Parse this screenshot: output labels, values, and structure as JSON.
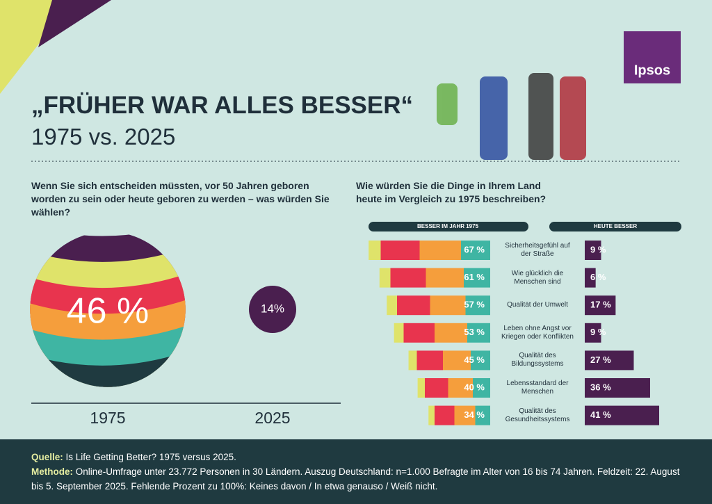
{
  "title": "„FRÜHER WAR ALLES BESSER“",
  "subtitle": "1975 vs. 2025",
  "logo": "Ipsos",
  "chart_data": [
    {
      "type": "bubble",
      "title": "Wenn Sie sich entscheiden müssten, vor 50 Jahren geboren worden zu sein oder heute geboren zu werden – was würden Sie wählen?",
      "categories": [
        "1975",
        "2025"
      ],
      "values": [
        46,
        14
      ],
      "value_labels": [
        "46 %",
        "14%"
      ],
      "colors": [
        "#e8344e",
        "#4a1f4f"
      ]
    },
    {
      "type": "diverging-bar",
      "title": "Wie würden Sie die Dinge in Ihrem Land heute im Vergleich zu 1975 beschreiben?",
      "categories": [
        "Sicherheitsgefühl auf der Straße",
        "Wie glücklich die Menschen sind",
        "Qualität der Umwelt",
        "Leben ohne Angst vor Kriegen oder Konflikten",
        "Qualität des Bildungssystems",
        "Lebensstandard der Menschen",
        "Qualität des Gesundheitssystems"
      ],
      "series": [
        {
          "name": "BESSER IM JAHR 1975",
          "color": "#e8344e",
          "values": [
            67,
            61,
            57,
            53,
            45,
            40,
            34
          ],
          "value_labels": [
            "67 %",
            "61 %",
            "57 %",
            "53 %",
            "45 %",
            "40 %",
            "34 %"
          ]
        },
        {
          "name": "HEUTE BESSER",
          "color": "#4a1f4f",
          "values": [
            9,
            6,
            17,
            9,
            27,
            36,
            41
          ],
          "value_labels": [
            "9 %",
            "6 %",
            "17 %",
            "9 %",
            "27 %",
            "36 %",
            "41 %"
          ]
        }
      ]
    }
  ],
  "footer": {
    "source_label": "Quelle:",
    "source_text": "Is Life Getting Better? 1975 versus 2025.",
    "method_label": "Methode:",
    "method_text": "Online-Umfrage unter 23.772 Personen in 30 Ländern. Auszug Deutschland: n=1.000 Befragte im Alter von 16 bis 74 Jahren. Feldzeit: 22. August bis 5. September 2025. Fehlende Prozent zu 100%: Keines davon / In etwa genauso / Weiß nicht."
  }
}
